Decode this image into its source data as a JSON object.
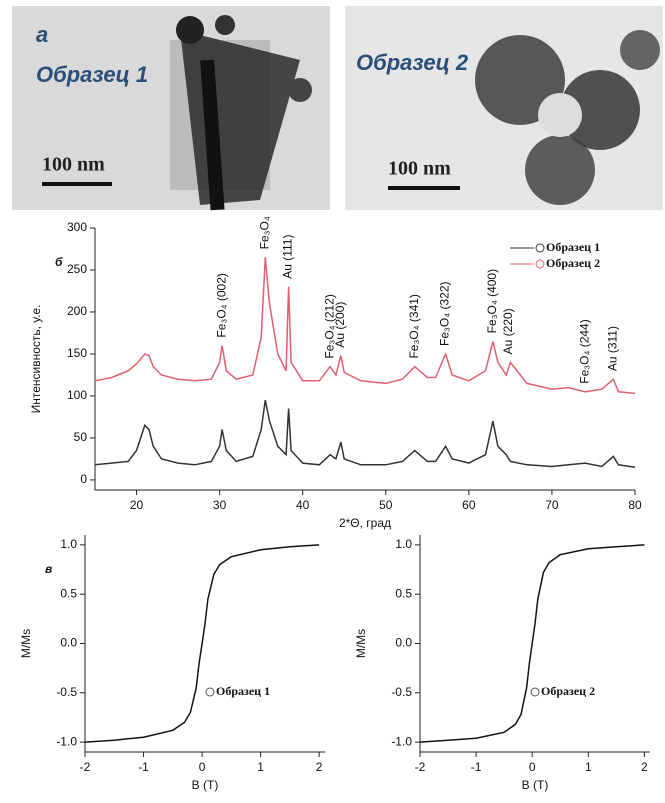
{
  "panel_a": {
    "label": "а",
    "images": [
      {
        "caption": "Образец 1",
        "scale": "100 nm"
      },
      {
        "caption": "Образец 2",
        "scale": "100 nm"
      }
    ]
  },
  "chart_data": [
    {
      "type": "line",
      "panel_label": "б",
      "xlabel": "2*Θ, град",
      "ylabel": "Интенсивность, у.е.",
      "x": [
        15,
        17,
        19,
        20,
        21,
        21.5,
        22,
        23,
        25,
        27,
        29,
        30,
        30.3,
        30.8,
        32,
        34,
        35,
        35.5,
        36,
        37,
        38,
        38.3,
        38.6,
        40,
        42,
        43.3,
        44,
        44.6,
        45,
        47,
        50,
        52,
        53.5,
        55,
        56,
        57.2,
        58,
        60,
        62,
        62.9,
        63.5,
        64.5,
        65,
        67,
        70,
        72,
        74,
        76,
        77.4,
        78,
        80
      ],
      "series": [
        {
          "name": "Образец 1",
          "color": "#333333",
          "values": [
            18,
            20,
            22,
            35,
            65,
            60,
            40,
            25,
            20,
            18,
            22,
            40,
            60,
            35,
            22,
            28,
            60,
            95,
            70,
            40,
            30,
            85,
            35,
            20,
            18,
            30,
            25,
            45,
            25,
            18,
            18,
            22,
            35,
            22,
            22,
            40,
            25,
            20,
            30,
            70,
            40,
            30,
            22,
            18,
            16,
            18,
            20,
            16,
            28,
            18,
            15
          ]
        },
        {
          "name": "Образец 2",
          "color": "#e0606e",
          "values": [
            118,
            122,
            130,
            138,
            150,
            148,
            135,
            125,
            120,
            118,
            120,
            140,
            160,
            130,
            120,
            125,
            170,
            265,
            210,
            150,
            130,
            230,
            140,
            118,
            118,
            135,
            125,
            148,
            128,
            118,
            115,
            120,
            135,
            122,
            122,
            150,
            125,
            118,
            130,
            165,
            140,
            125,
            140,
            115,
            108,
            110,
            105,
            108,
            120,
            105,
            103
          ]
        }
      ],
      "xlim": [
        15,
        80
      ],
      "xticks": [
        20,
        30,
        40,
        50,
        60,
        70,
        80
      ],
      "ylim": [
        -12,
        300
      ],
      "yticks": [
        0,
        50,
        100,
        150,
        200,
        250,
        300
      ],
      "legend": "upper right",
      "annotations": [
        {
          "text": "Fe₃O₄ (002)",
          "x": 30.3
        },
        {
          "text": "Fe₃O₄",
          "x": 35.5
        },
        {
          "text": "Au (111)",
          "x": 38.3
        },
        {
          "text": "Fe₃O₄ (212)",
          "x": 43.3
        },
        {
          "text": "Au (200)",
          "x": 44.6
        },
        {
          "text": "Fe₃O₄ (341)",
          "x": 53.5
        },
        {
          "text": "Fe₃O₄ (322)",
          "x": 57.2
        },
        {
          "text": "Fe₃O₄ (400)",
          "x": 62.9
        },
        {
          "text": "Au (220)",
          "x": 64.8
        },
        {
          "text": "Fe₃O₄ (244)",
          "x": 74
        },
        {
          "text": "Au (311)",
          "x": 77.4
        }
      ]
    },
    {
      "type": "line",
      "panel_label": "в",
      "xlabel": "B (T)",
      "ylabel": "M/Ms",
      "x": [
        -2,
        -1.5,
        -1,
        -0.5,
        -0.3,
        -0.2,
        -0.1,
        -0.05,
        0,
        0.05,
        0.1,
        0.2,
        0.3,
        0.5,
        1,
        1.5,
        2
      ],
      "series": [
        {
          "name": "Образец 1",
          "color": "#111111",
          "values": [
            -1,
            -0.98,
            -0.95,
            -0.88,
            -0.8,
            -0.7,
            -0.45,
            -0.2,
            0,
            0.2,
            0.45,
            0.7,
            0.8,
            0.88,
            0.95,
            0.98,
            1
          ]
        }
      ],
      "xlim": [
        -2,
        2.1
      ],
      "xticks": [
        -2,
        -1,
        0,
        1,
        2
      ],
      "ylim": [
        -1.1,
        1.1
      ],
      "yticks": [
        {
          "value": -1,
          "label": "-1.0"
        },
        -0.5,
        {
          "value": 0,
          "label": "0.0"
        },
        0.5,
        {
          "value": 1,
          "label": "1.0"
        }
      ],
      "legend": "lower right"
    },
    {
      "type": "line",
      "xlabel": "B (T)",
      "ylabel": "M/Ms",
      "x": [
        -2,
        -1.5,
        -1,
        -0.5,
        -0.3,
        -0.2,
        -0.1,
        -0.05,
        0,
        0.05,
        0.1,
        0.2,
        0.3,
        0.5,
        1,
        1.5,
        2
      ],
      "series": [
        {
          "name": "Образец 2",
          "color": "#111111",
          "values": [
            -1,
            -0.98,
            -0.96,
            -0.9,
            -0.82,
            -0.72,
            -0.45,
            -0.2,
            0,
            0.2,
            0.45,
            0.72,
            0.82,
            0.9,
            0.96,
            0.98,
            1
          ]
        }
      ],
      "xlim": [
        -2,
        2.1
      ],
      "xticks": [
        -2,
        -1,
        0,
        1,
        2
      ],
      "ylim": [
        -1.1,
        1.1
      ],
      "yticks": [
        {
          "value": -1,
          "label": "-1.0"
        },
        -0.5,
        {
          "value": 0,
          "label": "0.0"
        },
        0.5,
        {
          "value": 1,
          "label": "1.0"
        }
      ],
      "legend": "lower right"
    }
  ]
}
